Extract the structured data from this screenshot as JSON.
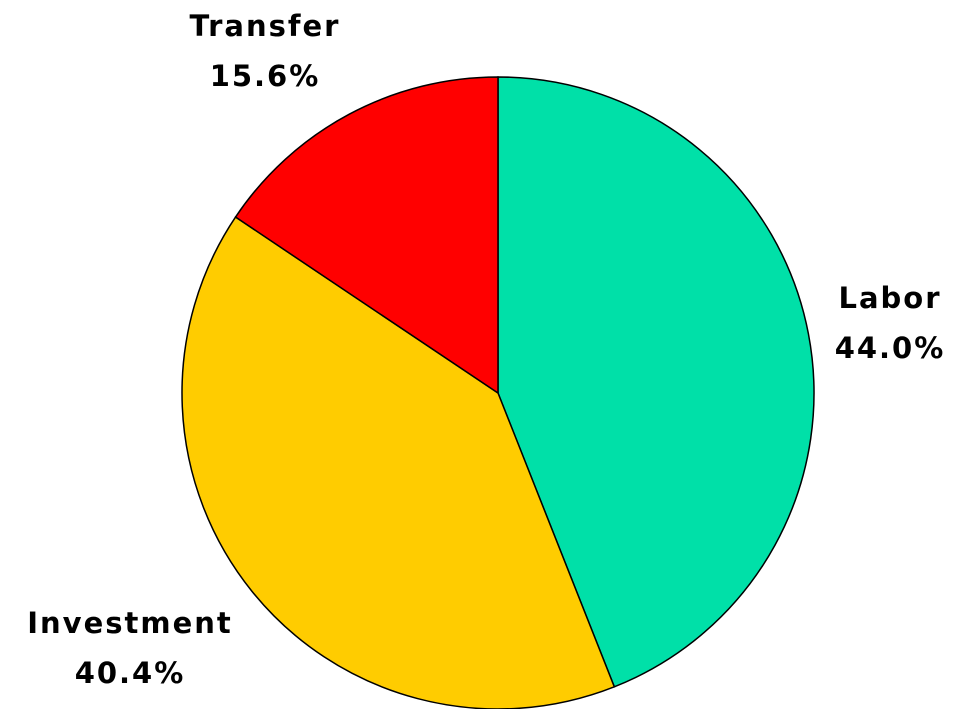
{
  "chart_data": {
    "type": "pie",
    "categories": [
      "Labor",
      "Investment",
      "Transfer"
    ],
    "values": [
      44.0,
      40.4,
      15.6
    ],
    "value_labels": [
      "44.0%",
      "40.4%",
      "15.6%"
    ],
    "colors": [
      "#00e0a8",
      "#ffcc00",
      "#ff0000"
    ]
  }
}
